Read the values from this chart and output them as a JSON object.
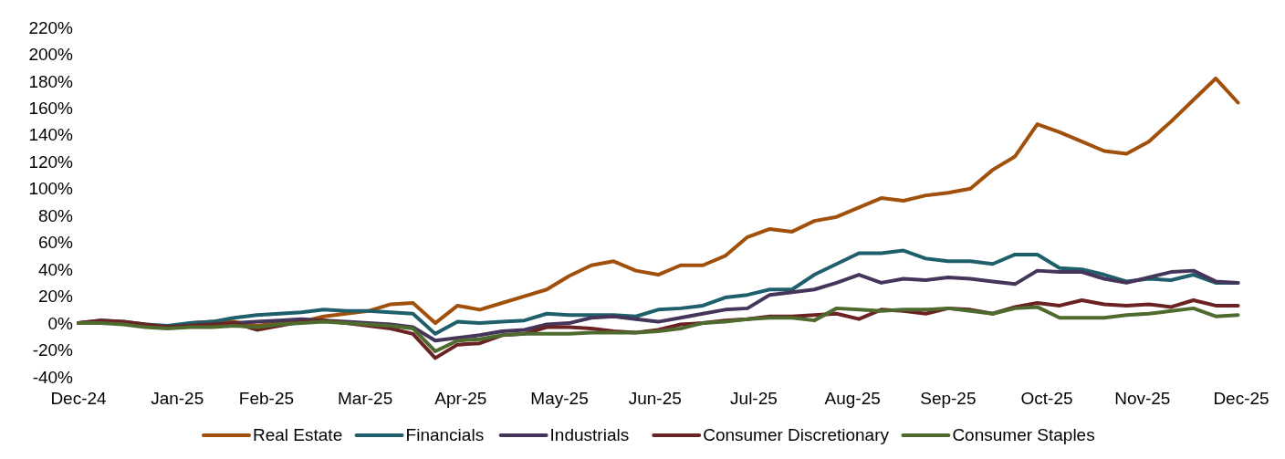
{
  "chart_data": {
    "type": "line",
    "x": [
      "2024-12-31",
      "2025-01-07",
      "2025-01-14",
      "2025-01-21",
      "2025-01-28",
      "2025-02-04",
      "2025-02-11",
      "2025-02-18",
      "2025-02-25",
      "2025-03-04",
      "2025-03-11",
      "2025-03-18",
      "2025-03-25",
      "2025-04-01",
      "2025-04-08",
      "2025-04-15",
      "2025-04-22",
      "2025-04-29",
      "2025-05-06",
      "2025-05-13",
      "2025-05-20",
      "2025-05-27",
      "2025-06-03",
      "2025-06-10",
      "2025-06-17",
      "2025-06-24",
      "2025-07-01",
      "2025-07-08",
      "2025-07-15",
      "2025-07-22",
      "2025-07-29",
      "2025-08-05",
      "2025-08-12",
      "2025-08-19",
      "2025-08-26",
      "2025-09-02",
      "2025-09-09",
      "2025-09-16",
      "2025-09-23",
      "2025-09-30",
      "2025-10-07",
      "2025-10-14",
      "2025-10-21",
      "2025-10-28",
      "2025-11-04",
      "2025-11-11",
      "2025-11-18",
      "2025-11-25",
      "2025-12-02",
      "2025-12-09",
      "2025-12-16",
      "2025-12-23",
      "2025-12-30"
    ],
    "series": [
      {
        "name": "Real Estate",
        "color": "#a0500a",
        "values": [
          null,
          null,
          null,
          null,
          null,
          0,
          1,
          1,
          -2,
          0,
          1,
          5,
          7,
          9,
          14,
          15,
          0,
          13,
          10,
          15,
          20,
          25,
          35,
          43,
          46,
          39,
          36,
          43,
          43,
          50,
          64,
          70,
          68,
          76,
          79,
          86,
          93,
          91,
          95,
          97,
          100,
          114,
          124,
          148,
          142,
          135,
          128,
          126,
          135,
          150,
          166,
          182,
          164
        ]
      },
      {
        "name": "Financials",
        "color": "#1f5f6b",
        "values": [
          0,
          2,
          1,
          -1,
          -2,
          0,
          1,
          4,
          6,
          7,
          8,
          10,
          9,
          9,
          8,
          7,
          -8,
          1,
          0,
          1,
          2,
          7,
          6,
          6,
          6,
          5,
          10,
          11,
          13,
          19,
          21,
          25,
          25,
          36,
          44,
          52,
          52,
          54,
          48,
          46,
          46,
          44,
          51,
          51,
          41,
          40,
          36,
          31,
          33,
          32,
          36,
          30,
          30
        ]
      },
      {
        "name": "Industrials",
        "color": "#45355a",
        "values": [
          0,
          1,
          0,
          -2,
          -3,
          -2,
          -1,
          0,
          1,
          2,
          3,
          2,
          1,
          0,
          -1,
          -3,
          -13,
          -11,
          -9,
          -6,
          -5,
          -1,
          0,
          4,
          5,
          3,
          1,
          4,
          7,
          10,
          11,
          21,
          23,
          25,
          30,
          36,
          30,
          33,
          32,
          34,
          33,
          31,
          29,
          39,
          38,
          38,
          33,
          30,
          34,
          38,
          39,
          31,
          30
        ]
      },
      {
        "name": "Consumer Discretionary",
        "color": "#6b2222",
        "values": [
          0,
          2,
          1,
          -1,
          -3,
          -2,
          -1,
          0,
          -5,
          -2,
          1,
          2,
          0,
          -2,
          -4,
          -8,
          -26,
          -16,
          -15,
          -9,
          -8,
          -3,
          -3,
          -4,
          -6,
          -7,
          -5,
          -1,
          0,
          2,
          3,
          5,
          5,
          6,
          7,
          3,
          10,
          9,
          7,
          11,
          10,
          7,
          12,
          15,
          13,
          17,
          14,
          13,
          14,
          12,
          17,
          13,
          13
        ]
      },
      {
        "name": "Consumer Staples",
        "color": "#4e6a2e",
        "values": [
          0,
          0,
          -1,
          -3,
          -4,
          -3,
          -3,
          -2,
          -3,
          -1,
          0,
          1,
          0,
          -1,
          -2,
          -4,
          -21,
          -13,
          -12,
          -9,
          -8,
          -8,
          -8,
          -7,
          -7,
          -7,
          -6,
          -4,
          0,
          1,
          3,
          4,
          4,
          2,
          11,
          10,
          9,
          10,
          10,
          11,
          9,
          7,
          11,
          12,
          4,
          4,
          4,
          6,
          7,
          9,
          11,
          5,
          6
        ]
      }
    ],
    "xlim": [
      "2024-12-31",
      "2025-12-31"
    ],
    "xticks": [
      {
        "value": "2024-12-31",
        "label": "Dec-24"
      },
      {
        "value": "2025-01-31",
        "label": "Jan-25"
      },
      {
        "value": "2025-02-28",
        "label": "Feb-25"
      },
      {
        "value": "2025-03-31",
        "label": "Mar-25"
      },
      {
        "value": "2025-04-30",
        "label": "Apr-25"
      },
      {
        "value": "2025-05-31",
        "label": "May-25"
      },
      {
        "value": "2025-06-30",
        "label": "Jun-25"
      },
      {
        "value": "2025-07-31",
        "label": "Jul-25"
      },
      {
        "value": "2025-08-31",
        "label": "Aug-25"
      },
      {
        "value": "2025-09-30",
        "label": "Sep-25"
      },
      {
        "value": "2025-10-31",
        "label": "Oct-25"
      },
      {
        "value": "2025-11-30",
        "label": "Nov-25"
      },
      {
        "value": "2025-12-31",
        "label": "Dec-25"
      }
    ],
    "ylim": [
      -40,
      220
    ],
    "yticks": [
      {
        "value": -40,
        "label": "-40%"
      },
      {
        "value": -20,
        "label": "-20%"
      },
      {
        "value": 0,
        "label": "0%"
      },
      {
        "value": 20,
        "label": "20%"
      },
      {
        "value": 40,
        "label": "40%"
      },
      {
        "value": 60,
        "label": "60%"
      },
      {
        "value": 80,
        "label": "80%"
      },
      {
        "value": 100,
        "label": "100%"
      },
      {
        "value": 120,
        "label": "120%"
      },
      {
        "value": 140,
        "label": "140%"
      },
      {
        "value": 160,
        "label": "160%"
      },
      {
        "value": 180,
        "label": "180%"
      },
      {
        "value": 200,
        "label": "200%"
      },
      {
        "value": 220,
        "label": "220%"
      }
    ],
    "grid": false,
    "legend": "bottom",
    "line_style": "solid",
    "marker": "none"
  }
}
